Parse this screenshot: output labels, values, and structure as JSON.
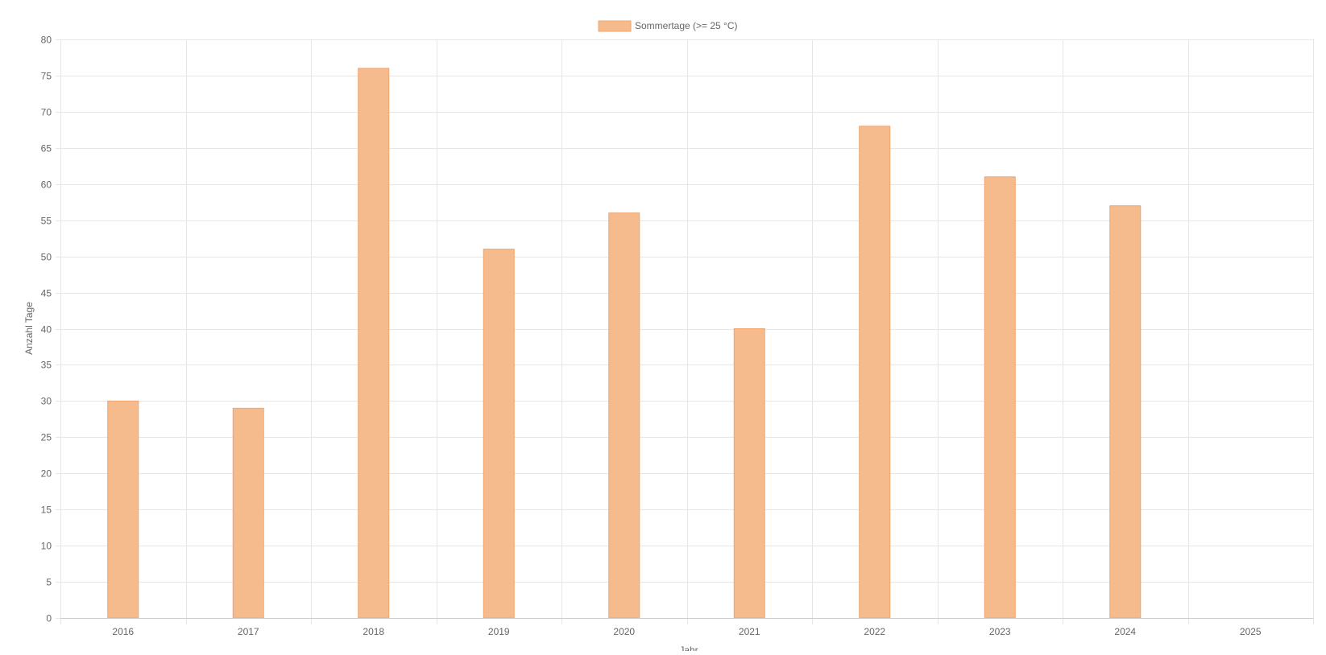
{
  "chart_data": {
    "type": "bar",
    "title": "",
    "xlabel": "Jahr",
    "ylabel": "Anzahl Tage",
    "categories": [
      "2016",
      "2017",
      "2018",
      "2019",
      "2020",
      "2021",
      "2022",
      "2023",
      "2024",
      "2025"
    ],
    "series": [
      {
        "name": "Sommertage (>= 25 °C)",
        "values": [
          30,
          29,
          76,
          51,
          56,
          40,
          68,
          61,
          57,
          null
        ],
        "fill_color": "#f5bb8c",
        "border_color": "#f0a46e"
      }
    ],
    "ylim": [
      0,
      80
    ],
    "y_ticks": [
      0,
      5,
      10,
      15,
      20,
      25,
      30,
      35,
      40,
      45,
      50,
      55,
      60,
      65,
      70,
      75,
      80
    ],
    "grid": true,
    "legend_position": "top-center"
  },
  "colors": {
    "grid": "#e6e6e6",
    "axis_text": "#666666"
  }
}
